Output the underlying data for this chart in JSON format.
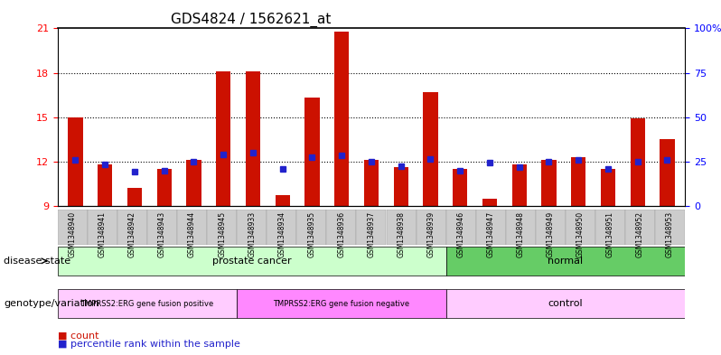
{
  "title": "GDS4824 / 1562621_at",
  "samples": [
    "GSM1348940",
    "GSM1348941",
    "GSM1348942",
    "GSM1348943",
    "GSM1348944",
    "GSM1348945",
    "GSM1348933",
    "GSM1348934",
    "GSM1348935",
    "GSM1348936",
    "GSM1348937",
    "GSM1348938",
    "GSM1348939",
    "GSM1348946",
    "GSM1348947",
    "GSM1348948",
    "GSM1348949",
    "GSM1348950",
    "GSM1348951",
    "GSM1348952",
    "GSM1348953"
  ],
  "red_bar_values": [
    15.0,
    11.8,
    10.2,
    11.5,
    12.1,
    18.1,
    18.1,
    9.7,
    16.3,
    20.8,
    12.1,
    11.6,
    16.7,
    11.5,
    9.5,
    11.8,
    12.1,
    12.3,
    11.5,
    14.9,
    13.5
  ],
  "blue_square_values": [
    12.1,
    11.8,
    11.3,
    11.4,
    12.0,
    12.5,
    12.6,
    11.5,
    12.3,
    12.4,
    12.0,
    11.7,
    12.2,
    11.4,
    11.9,
    11.6,
    12.0,
    12.1,
    11.5,
    12.0,
    12.1
  ],
  "ylim_left": [
    9,
    21
  ],
  "yticks_left": [
    9,
    12,
    15,
    18,
    21
  ],
  "yticks_right": [
    0,
    25,
    50,
    75,
    100
  ],
  "ytick_labels_right": [
    "0",
    "25",
    "50",
    "75",
    "100%"
  ],
  "hlines": [
    12,
    15,
    18
  ],
  "bar_color": "#cc1100",
  "square_color": "#2222cc",
  "bar_width": 0.5,
  "background_color": "#ffffff",
  "disease_state_labels": [
    {
      "label": "prostate cancer",
      "start": 0,
      "end": 12,
      "color": "#ccffcc"
    },
    {
      "label": "normal",
      "start": 13,
      "end": 20,
      "color": "#66cc66"
    }
  ],
  "genotype_labels": [
    {
      "label": "TMPRSS2:ERG gene fusion positive",
      "start": 0,
      "end": 5,
      "color": "#ffccff"
    },
    {
      "label": "TMPRSS2:ERG gene fusion negative",
      "start": 6,
      "end": 12,
      "color": "#ff88ff"
    },
    {
      "label": "control",
      "start": 13,
      "end": 20,
      "color": "#ffccff"
    }
  ],
  "legend_items": [
    {
      "label": "count",
      "color": "#cc1100",
      "marker": "s"
    },
    {
      "label": "percentile rank within the sample",
      "color": "#2222cc",
      "marker": "s"
    }
  ],
  "x_label_fontsize": 6.5,
  "tick_fontsize": 8,
  "title_fontsize": 11
}
